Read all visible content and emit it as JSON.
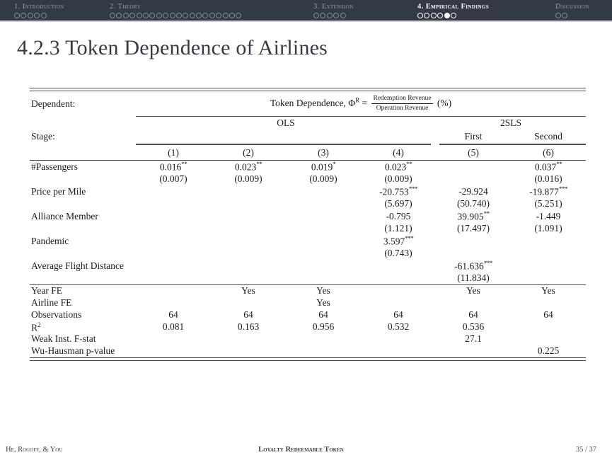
{
  "nav": {
    "sections": [
      {
        "label": "1. Introduction",
        "dots": 5,
        "filled_dot": -1,
        "active": false
      },
      {
        "label": "2. Theory",
        "dots": 20,
        "filled_dot": -1,
        "active": false
      },
      {
        "label": "3. Extension",
        "dots": 5,
        "filled_dot": -1,
        "active": false
      },
      {
        "label": "4. Empirical Findings",
        "dots": 6,
        "filled_dot": 4,
        "active": true
      },
      {
        "label": "Discussion",
        "dots": 2,
        "filled_dot": -1,
        "active": false
      }
    ]
  },
  "title": "4.2.3 Token Dependence of Airlines",
  "table": {
    "dependent_label": "Dependent:",
    "dependent_formula": {
      "prefix": "Token Dependence, Φ",
      "sup": "R",
      "equals": "=",
      "numerator": "Redemption Revenue",
      "denominator": "Operation Revenue",
      "suffix": "(%)"
    },
    "group_headers": [
      {
        "label": "OLS",
        "span": 4
      },
      {
        "label": "2SLS",
        "span": 2
      }
    ],
    "stage_label": "Stage:",
    "stage_cols": [
      "",
      "",
      "",
      "",
      "First",
      "Second"
    ],
    "col_numbers": [
      "(1)",
      "(2)",
      "(3)",
      "(4)",
      "(5)",
      "(6)"
    ],
    "coef_rows": [
      {
        "label": "#Passengers",
        "cells": [
          {
            "est": "0.016",
            "stars": "**",
            "se": "(0.007)"
          },
          {
            "est": "0.023",
            "stars": "**",
            "se": "(0.009)"
          },
          {
            "est": "0.019",
            "stars": "*",
            "se": "(0.009)"
          },
          {
            "est": "0.023",
            "stars": "**",
            "se": "(0.009)"
          },
          null,
          {
            "est": "0.037",
            "stars": "**",
            "se": "(0.016)"
          }
        ]
      },
      {
        "label": "Price per Mile",
        "cells": [
          null,
          null,
          null,
          {
            "est": "-20.753",
            "stars": "***",
            "se": "(5.697)"
          },
          {
            "est": "-29.924",
            "stars": "",
            "se": "(50.740)"
          },
          {
            "est": "-19.877",
            "stars": "***",
            "se": "(5.251)"
          }
        ]
      },
      {
        "label": "Alliance Member",
        "cells": [
          null,
          null,
          null,
          {
            "est": "-0.795",
            "stars": "",
            "se": "(1.121)"
          },
          {
            "est": "39.905",
            "stars": "**",
            "se": "(17.497)"
          },
          {
            "est": "-1.449",
            "stars": "",
            "se": "(1.091)"
          }
        ]
      },
      {
        "label": "Pandemic",
        "cells": [
          null,
          null,
          null,
          {
            "est": "3.597",
            "stars": "***",
            "se": "(0.743)"
          },
          null,
          null
        ]
      },
      {
        "label": "Average Flight Distance",
        "cells": [
          null,
          null,
          null,
          null,
          {
            "est": "-61.636",
            "stars": "***",
            "se": "(11.834)"
          },
          null
        ]
      }
    ],
    "stat_rows": [
      {
        "label": "Year FE",
        "sup": "",
        "cells": [
          "",
          "Yes",
          "Yes",
          "",
          "Yes",
          "Yes"
        ]
      },
      {
        "label": "Airline FE",
        "sup": "",
        "cells": [
          "",
          "",
          "Yes",
          "",
          "",
          ""
        ]
      },
      {
        "label": "Observations",
        "sup": "",
        "cells": [
          "64",
          "64",
          "64",
          "64",
          "64",
          "64"
        ]
      },
      {
        "label": "R",
        "sup": "2",
        "cells": [
          "0.081",
          "0.163",
          "0.956",
          "0.532",
          "0.536",
          ""
        ]
      },
      {
        "label": "Weak Inst. F-stat",
        "sup": "",
        "cells": [
          "",
          "",
          "",
          "",
          "27.1",
          ""
        ]
      },
      {
        "label": "Wu-Hausman p-value",
        "sup": "",
        "cells": [
          "",
          "",
          "",
          "",
          "",
          "0.225"
        ]
      }
    ]
  },
  "footer": {
    "authors": "He, Rogoff, & You",
    "short_title": "Loyalty Redeemable Token",
    "page": "35 / 37"
  }
}
